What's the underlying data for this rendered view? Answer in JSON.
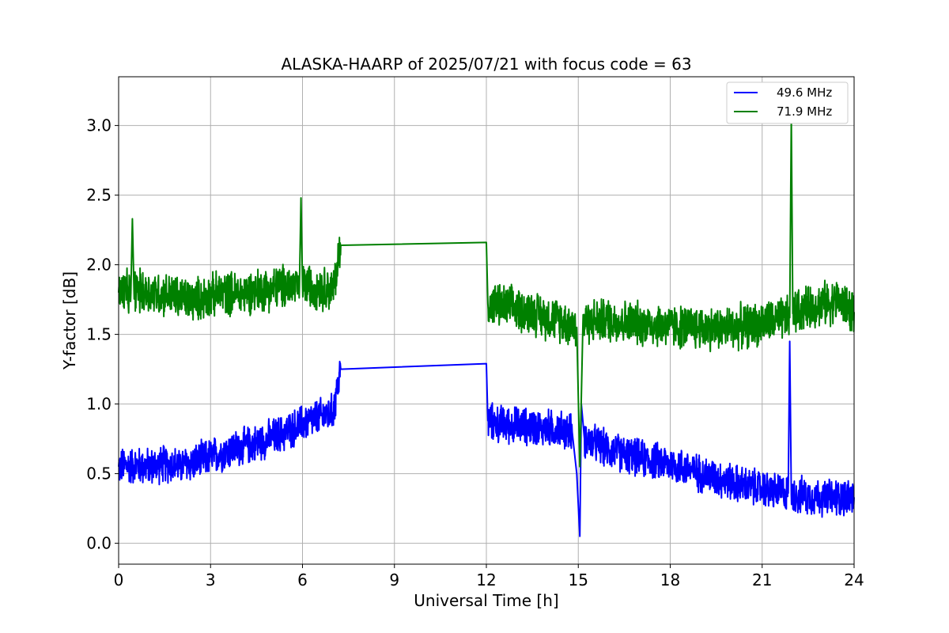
{
  "chart_data": {
    "type": "line",
    "title": "ALASKA-HAARP of 2025/07/21 with focus code = 63",
    "xlabel": "Universal Time [h]",
    "ylabel": "Y-factor [dB]",
    "xlim": [
      0,
      24
    ],
    "ylim": [
      -0.15,
      3.35
    ],
    "x_ticks": [
      0,
      3,
      6,
      9,
      12,
      15,
      18,
      21,
      24
    ],
    "y_ticks": [
      0.0,
      0.5,
      1.0,
      1.5,
      2.0,
      2.5,
      3.0
    ],
    "x_tick_labels": [
      "0",
      "3",
      "6",
      "9",
      "12",
      "15",
      "18",
      "21",
      "24"
    ],
    "y_tick_labels": [
      "0.0",
      "0.5",
      "1.0",
      "1.5",
      "2.0",
      "2.5",
      "3.0"
    ],
    "grid": true,
    "legend_position": "top-right",
    "series": [
      {
        "name": "49.6 MHz",
        "color": "#0000ff",
        "x": [
          0.0,
          0.5,
          1.0,
          1.5,
          2.0,
          2.5,
          3.0,
          3.5,
          4.0,
          4.5,
          5.0,
          5.5,
          6.0,
          6.5,
          7.0,
          7.25,
          12.0,
          12.05,
          12.3,
          12.8,
          13.3,
          13.8,
          14.3,
          14.8,
          14.95,
          15.05,
          15.1,
          15.2,
          15.5,
          16.0,
          16.5,
          17.0,
          17.5,
          18.0,
          18.5,
          19.0,
          19.5,
          20.0,
          20.5,
          21.0,
          21.5,
          21.85,
          21.9,
          21.95,
          22.5,
          23.0,
          23.5,
          24.0
        ],
        "y": [
          0.55,
          0.56,
          0.55,
          0.57,
          0.56,
          0.58,
          0.62,
          0.66,
          0.69,
          0.72,
          0.76,
          0.8,
          0.86,
          0.9,
          0.94,
          1.25,
          1.29,
          0.88,
          0.86,
          0.85,
          0.84,
          0.83,
          0.82,
          0.8,
          0.5,
          0.05,
          1.0,
          0.75,
          0.72,
          0.67,
          0.64,
          0.61,
          0.59,
          0.57,
          0.54,
          0.5,
          0.47,
          0.44,
          0.41,
          0.39,
          0.37,
          0.36,
          1.45,
          0.35,
          0.34,
          0.33,
          0.33,
          0.33
        ],
        "noise": 0.12
      },
      {
        "name": "71.9 MHz",
        "color": "#008000",
        "x": [
          0.0,
          0.4,
          0.45,
          0.5,
          1.0,
          1.5,
          2.0,
          2.5,
          3.0,
          3.5,
          4.0,
          4.5,
          5.0,
          5.5,
          5.9,
          5.95,
          6.0,
          6.5,
          7.0,
          7.25,
          12.0,
          12.05,
          12.5,
          13.0,
          13.5,
          14.0,
          14.5,
          14.95,
          15.05,
          15.15,
          15.5,
          16.0,
          16.5,
          17.0,
          17.5,
          18.0,
          18.5,
          19.0,
          19.5,
          20.0,
          20.5,
          21.0,
          21.5,
          21.9,
          21.95,
          22.0,
          22.5,
          23.0,
          23.5,
          24.0
        ],
        "y": [
          1.8,
          1.8,
          2.33,
          1.82,
          1.8,
          1.79,
          1.76,
          1.75,
          1.78,
          1.8,
          1.79,
          1.82,
          1.83,
          1.85,
          1.84,
          2.48,
          1.86,
          1.84,
          1.82,
          2.14,
          2.16,
          1.72,
          1.7,
          1.68,
          1.66,
          1.62,
          1.6,
          1.55,
          0.55,
          1.58,
          1.6,
          1.6,
          1.59,
          1.58,
          1.57,
          1.56,
          1.55,
          1.55,
          1.54,
          1.55,
          1.56,
          1.58,
          1.6,
          1.62,
          3.05,
          1.65,
          1.7,
          1.72,
          1.74,
          1.66
        ],
        "noise": 0.14
      }
    ]
  }
}
